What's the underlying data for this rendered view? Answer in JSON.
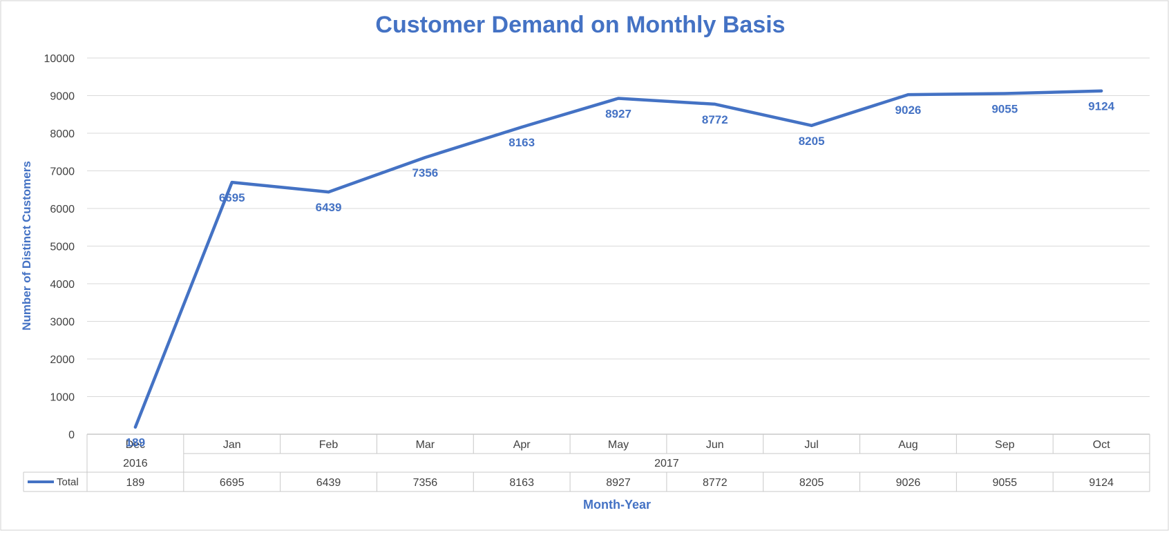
{
  "chart_data": {
    "type": "line",
    "title": "Customer Demand on Monthly Basis",
    "xlabel": "Month-Year",
    "ylabel": "Number of Distinct Customers",
    "ylim": [
      0,
      10000
    ],
    "yticks": [
      "0",
      "1000",
      "2000",
      "3000",
      "4000",
      "5000",
      "6000",
      "7000",
      "8000",
      "9000",
      "10000"
    ],
    "grid": true,
    "categories": [
      "Dec",
      "Jan",
      "Feb",
      "Mar",
      "Apr",
      "May",
      "Jun",
      "Jul",
      "Aug",
      "Sep",
      "Oct"
    ],
    "years": [
      {
        "label": "2016",
        "span": 1
      },
      {
        "label": "2017",
        "span": 10
      }
    ],
    "series": [
      {
        "name": "Total",
        "color": "#4472C4",
        "values": [
          189,
          6695,
          6439,
          7356,
          8163,
          8927,
          8772,
          8205,
          9026,
          9055,
          9124
        ],
        "labels": [
          "189",
          "6695",
          "6439",
          "7356",
          "8163",
          "8927",
          "8772",
          "8205",
          "9026",
          "9055",
          "9124"
        ]
      }
    ],
    "data_table": {
      "legend_label": "Total",
      "values": [
        "189",
        "6695",
        "6439",
        "7356",
        "8163",
        "8927",
        "8772",
        "8205",
        "9026",
        "9055",
        "9124"
      ]
    }
  }
}
